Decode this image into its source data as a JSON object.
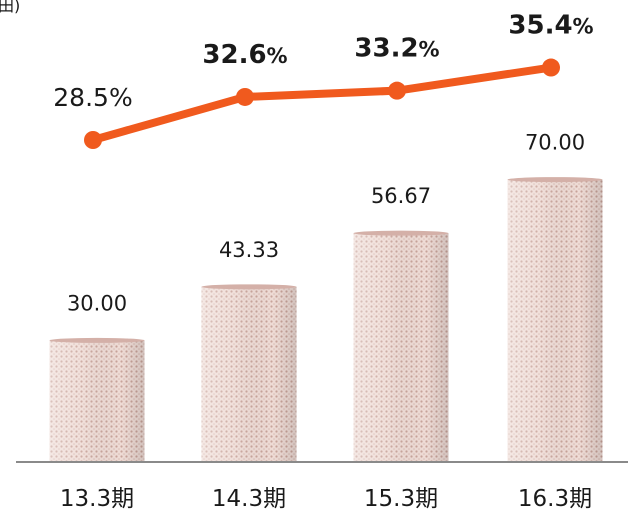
{
  "corner_text": "田)",
  "chart_data": {
    "type": "bar",
    "categories": [
      "13.3期",
      "14.3期",
      "15.3期",
      "16.3期"
    ],
    "series": [
      {
        "type": "bar",
        "values": [
          30.0,
          43.33,
          56.67,
          70.0
        ],
        "value_labels": [
          "30.00",
          "43.33",
          "56.67",
          "70.00"
        ],
        "color": "#e8c8c0"
      },
      {
        "type": "line",
        "values": [
          28.5,
          32.6,
          33.2,
          35.4
        ],
        "value_labels": [
          "28.5%",
          "32.6%",
          "33.2%",
          "35.4%"
        ],
        "bold": [
          false,
          true,
          true,
          true
        ],
        "color": "#f05a1e"
      }
    ],
    "title": "",
    "xlabel": "",
    "ylabel": "",
    "grid": false,
    "legend": "none"
  }
}
